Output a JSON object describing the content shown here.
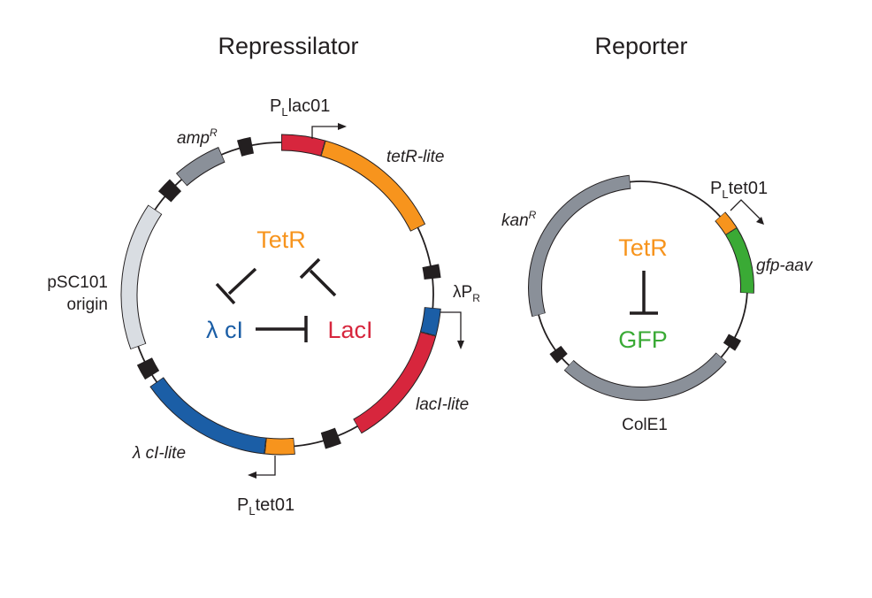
{
  "repressilator": {
    "title": "Repressilator",
    "labels": {
      "plac_p": "P",
      "plac_sub": "L",
      "plac_rest": "lac01",
      "tetr_lite": "tetR-lite",
      "lambda_pr_main": "λP",
      "lambda_pr_sub": "R",
      "laci_lite": "lacI-lite",
      "ptet_p": "P",
      "ptet_sub": "L",
      "ptet_rest": "tet01",
      "lambda_ci_lite": "λ cI-lite",
      "psc101_line1": "pSC101",
      "psc101_line2": "origin",
      "amp_main": "amp",
      "amp_sup": "R"
    },
    "network": {
      "tetr": "TetR",
      "lambda_ci": "λ cI",
      "laci": "LacI"
    }
  },
  "reporter": {
    "title": "Reporter",
    "labels": {
      "ptet_p": "P",
      "ptet_sub": "L",
      "ptet_rest": "tet01",
      "gfp_aav": "gfp-aav",
      "cole1": "ColE1",
      "kan_main": "kan",
      "kan_sup": "R"
    },
    "network": {
      "tetr": "TetR",
      "gfp": "GFP"
    }
  },
  "colors": {
    "orange": "#f7941d",
    "red": "#d7263d",
    "blue": "#1b5ea6",
    "grey": "#8a9099",
    "light_grey": "#d9dde2",
    "green": "#3aaa35",
    "black": "#231f20"
  }
}
